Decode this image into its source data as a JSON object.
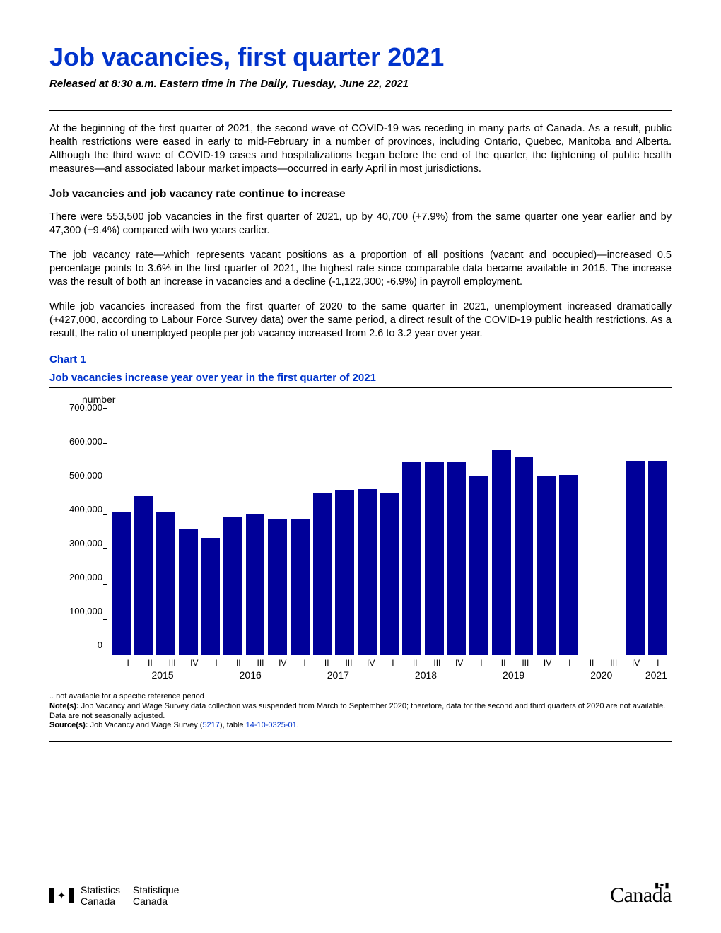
{
  "title": "Job vacancies, first quarter 2021",
  "subtitle": "Released at 8:30 a.m. Eastern time in The Daily, Tuesday, June 22, 2021",
  "paragraphs": {
    "p1": "At the beginning of the first quarter of 2021, the second wave of COVID-19 was receding in many parts of Canada. As a result, public health restrictions were eased in early to mid-February in a number of provinces, including Ontario, Quebec, Manitoba and Alberta. Although the third wave of COVID-19 cases and hospitalizations began before the end of the quarter, the tightening of public health measures—and associated labour market impacts—occurred in early April in most jurisdictions.",
    "h1": "Job vacancies and job vacancy rate continue to increase",
    "p2": "There were 553,500 job vacancies in the first quarter of 2021, up by 40,700 (+7.9%) from the same quarter one year earlier and by 47,300 (+9.4%) compared with two years earlier.",
    "p3": "The job vacancy rate—which represents vacant positions as a proportion of all positions (vacant and occupied)—increased 0.5 percentage points to 3.6% in the first quarter of 2021, the highest rate since comparable data became available in 2015. The increase was the result of both an increase in vacancies and a decline (-1,122,300; -6.9%) in payroll employment.",
    "p4": "While job vacancies increased from the first quarter of 2020 to the same quarter in 2021, unemployment increased dramatically (+427,000, according to Labour Force Survey data) over the same period, a direct result of the COVID-19 public health restrictions. As a result, the ratio of unemployed people per job vacancy increased from 2.6 to 3.2 year over year."
  },
  "chart": {
    "label": "Chart 1",
    "title": "Job vacancies increase year over year in the first quarter of 2021",
    "y_label": "number",
    "type": "bar",
    "ylim": [
      0,
      700000
    ],
    "ytick_step": 100000,
    "y_ticks": [
      "700,000",
      "600,000",
      "500,000",
      "400,000",
      "300,000",
      "200,000",
      "100,000",
      "0"
    ],
    "bar_color": "#000099",
    "background_color": "#ffffff",
    "axis_color": "#000000",
    "bar_gap": 5,
    "quarters": [
      "I",
      "II",
      "III",
      "IV",
      "I",
      "II",
      "III",
      "IV",
      "I",
      "II",
      "III",
      "IV",
      "I",
      "II",
      "III",
      "IV",
      "I",
      "II",
      "III",
      "IV",
      "I",
      "II",
      "III",
      "IV",
      "I"
    ],
    "years": [
      "2015",
      "2016",
      "2017",
      "2018",
      "2019",
      "2020",
      "2021"
    ],
    "values": [
      405000,
      450000,
      405000,
      355000,
      330000,
      390000,
      400000,
      385000,
      385000,
      460000,
      468000,
      470000,
      460000,
      545000,
      545000,
      545000,
      505000,
      580000,
      560000,
      505000,
      510000,
      null,
      null,
      550000,
      550000
    ]
  },
  "notes": {
    "n1": ".. not available for a specific reference period",
    "n2_label": "Note(s):",
    "n2": " Job Vacancy and Wage Survey data collection was suspended from March to September 2020; therefore, data for the second and third quarters of 2020 are not available. Data are not seasonally adjusted.",
    "n3_label": "Source(s):",
    "n3_a": " Job Vacancy and Wage Survey (",
    "n3_link1": "5217",
    "n3_b": "), table ",
    "n3_link2": "14-10-0325-01",
    "n3_c": "."
  },
  "footer": {
    "statcan_en1": "Statistics",
    "statcan_en2": "Canada",
    "statcan_fr1": "Statistique",
    "statcan_fr2": "Canada",
    "wordmark": "Canada"
  }
}
